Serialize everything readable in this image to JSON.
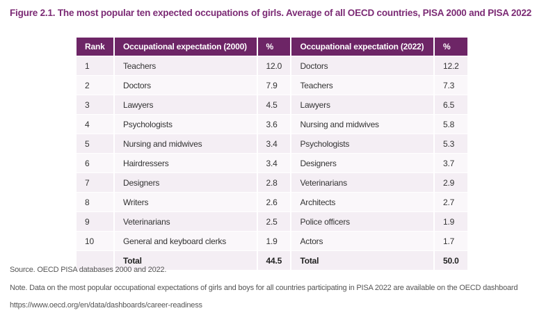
{
  "header": {
    "title": "Figure  2.1. The most popular ten expected occupations of girls. Average of all OECD countries, PISA 2000 and PISA 2022"
  },
  "table": {
    "columns": [
      "Rank",
      "Occupational expectation  (2000)",
      "%",
      "Occupational expectation (2022)",
      "%"
    ],
    "rows": [
      [
        "1",
        "Teachers",
        "12.0",
        "Doctors",
        "12.2"
      ],
      [
        "2",
        "Doctors",
        "7.9",
        "Teachers",
        "7.3"
      ],
      [
        "3",
        "Lawyers",
        "4.5",
        "Lawyers",
        "6.5"
      ],
      [
        "4",
        "Psychologists",
        "3.6",
        "Nursing and midwives",
        "5.8"
      ],
      [
        "5",
        "Nursing and midwives",
        "3.4",
        "Psychologists",
        "5.3"
      ],
      [
        "6",
        "Hairdressers",
        "3.4",
        "Designers",
        "3.7"
      ],
      [
        "7",
        "Designers",
        "2.8",
        "Veterinarians",
        "2.9"
      ],
      [
        "8",
        "Writers",
        "2.6",
        "Architects",
        "2.7"
      ],
      [
        "9",
        "Veterinarians",
        "2.5",
        "Police officers",
        "1.9"
      ],
      [
        "10",
        "General and keyboard clerks",
        "1.9",
        "Actors",
        "1.7"
      ]
    ],
    "total": [
      "Total",
      "44.5",
      "Total",
      "50.0"
    ]
  },
  "footnotes": {
    "source": "Source. OECD PISA databases 2000 and 2022.",
    "note": "Note. Data on the most popular occupational expectations of girls and boys for all countries participating in PISA 2022 are available on the OECD dashboard https://www.oecd.org/en/data/dashboards/career-readiness"
  }
}
